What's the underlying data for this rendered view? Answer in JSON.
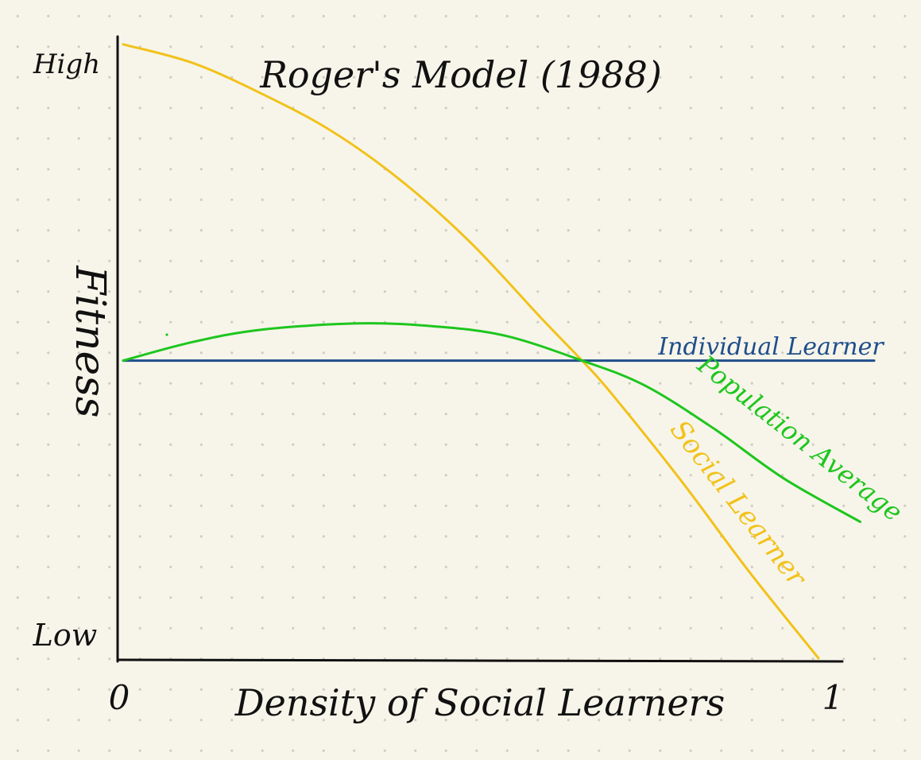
{
  "chart_data": {
    "type": "line",
    "title": "Roger's Model (1988)",
    "xlabel": "Density of Social Learners",
    "ylabel": "Fitness",
    "x_ticks": [
      "0",
      "1"
    ],
    "y_ticks": [
      "High",
      "Low"
    ],
    "xlim": [
      0,
      1
    ],
    "ylim": [
      0,
      1
    ],
    "grid": false,
    "series": [
      {
        "name": "Individual Learner",
        "color": "#1f4e8c",
        "x": [
          0,
          1.08
        ],
        "y": [
          0.48,
          0.48
        ]
      },
      {
        "name": "Social Learner",
        "color": "#f2c21b",
        "x": [
          0,
          0.1,
          0.2,
          0.3,
          0.4,
          0.5,
          0.6,
          0.66,
          0.7,
          0.8,
          0.9,
          1.0
        ],
        "y": [
          0.99,
          0.96,
          0.91,
          0.85,
          0.77,
          0.67,
          0.55,
          0.48,
          0.43,
          0.29,
          0.14,
          0.0
        ]
      },
      {
        "name": "Population Average",
        "color": "#1ec61e",
        "x": [
          0,
          0.1,
          0.2,
          0.34,
          0.45,
          0.55,
          0.66,
          0.75,
          0.85,
          0.95,
          1.06
        ],
        "y": [
          0.48,
          0.51,
          0.53,
          0.54,
          0.535,
          0.52,
          0.48,
          0.44,
          0.37,
          0.29,
          0.22
        ]
      }
    ]
  }
}
